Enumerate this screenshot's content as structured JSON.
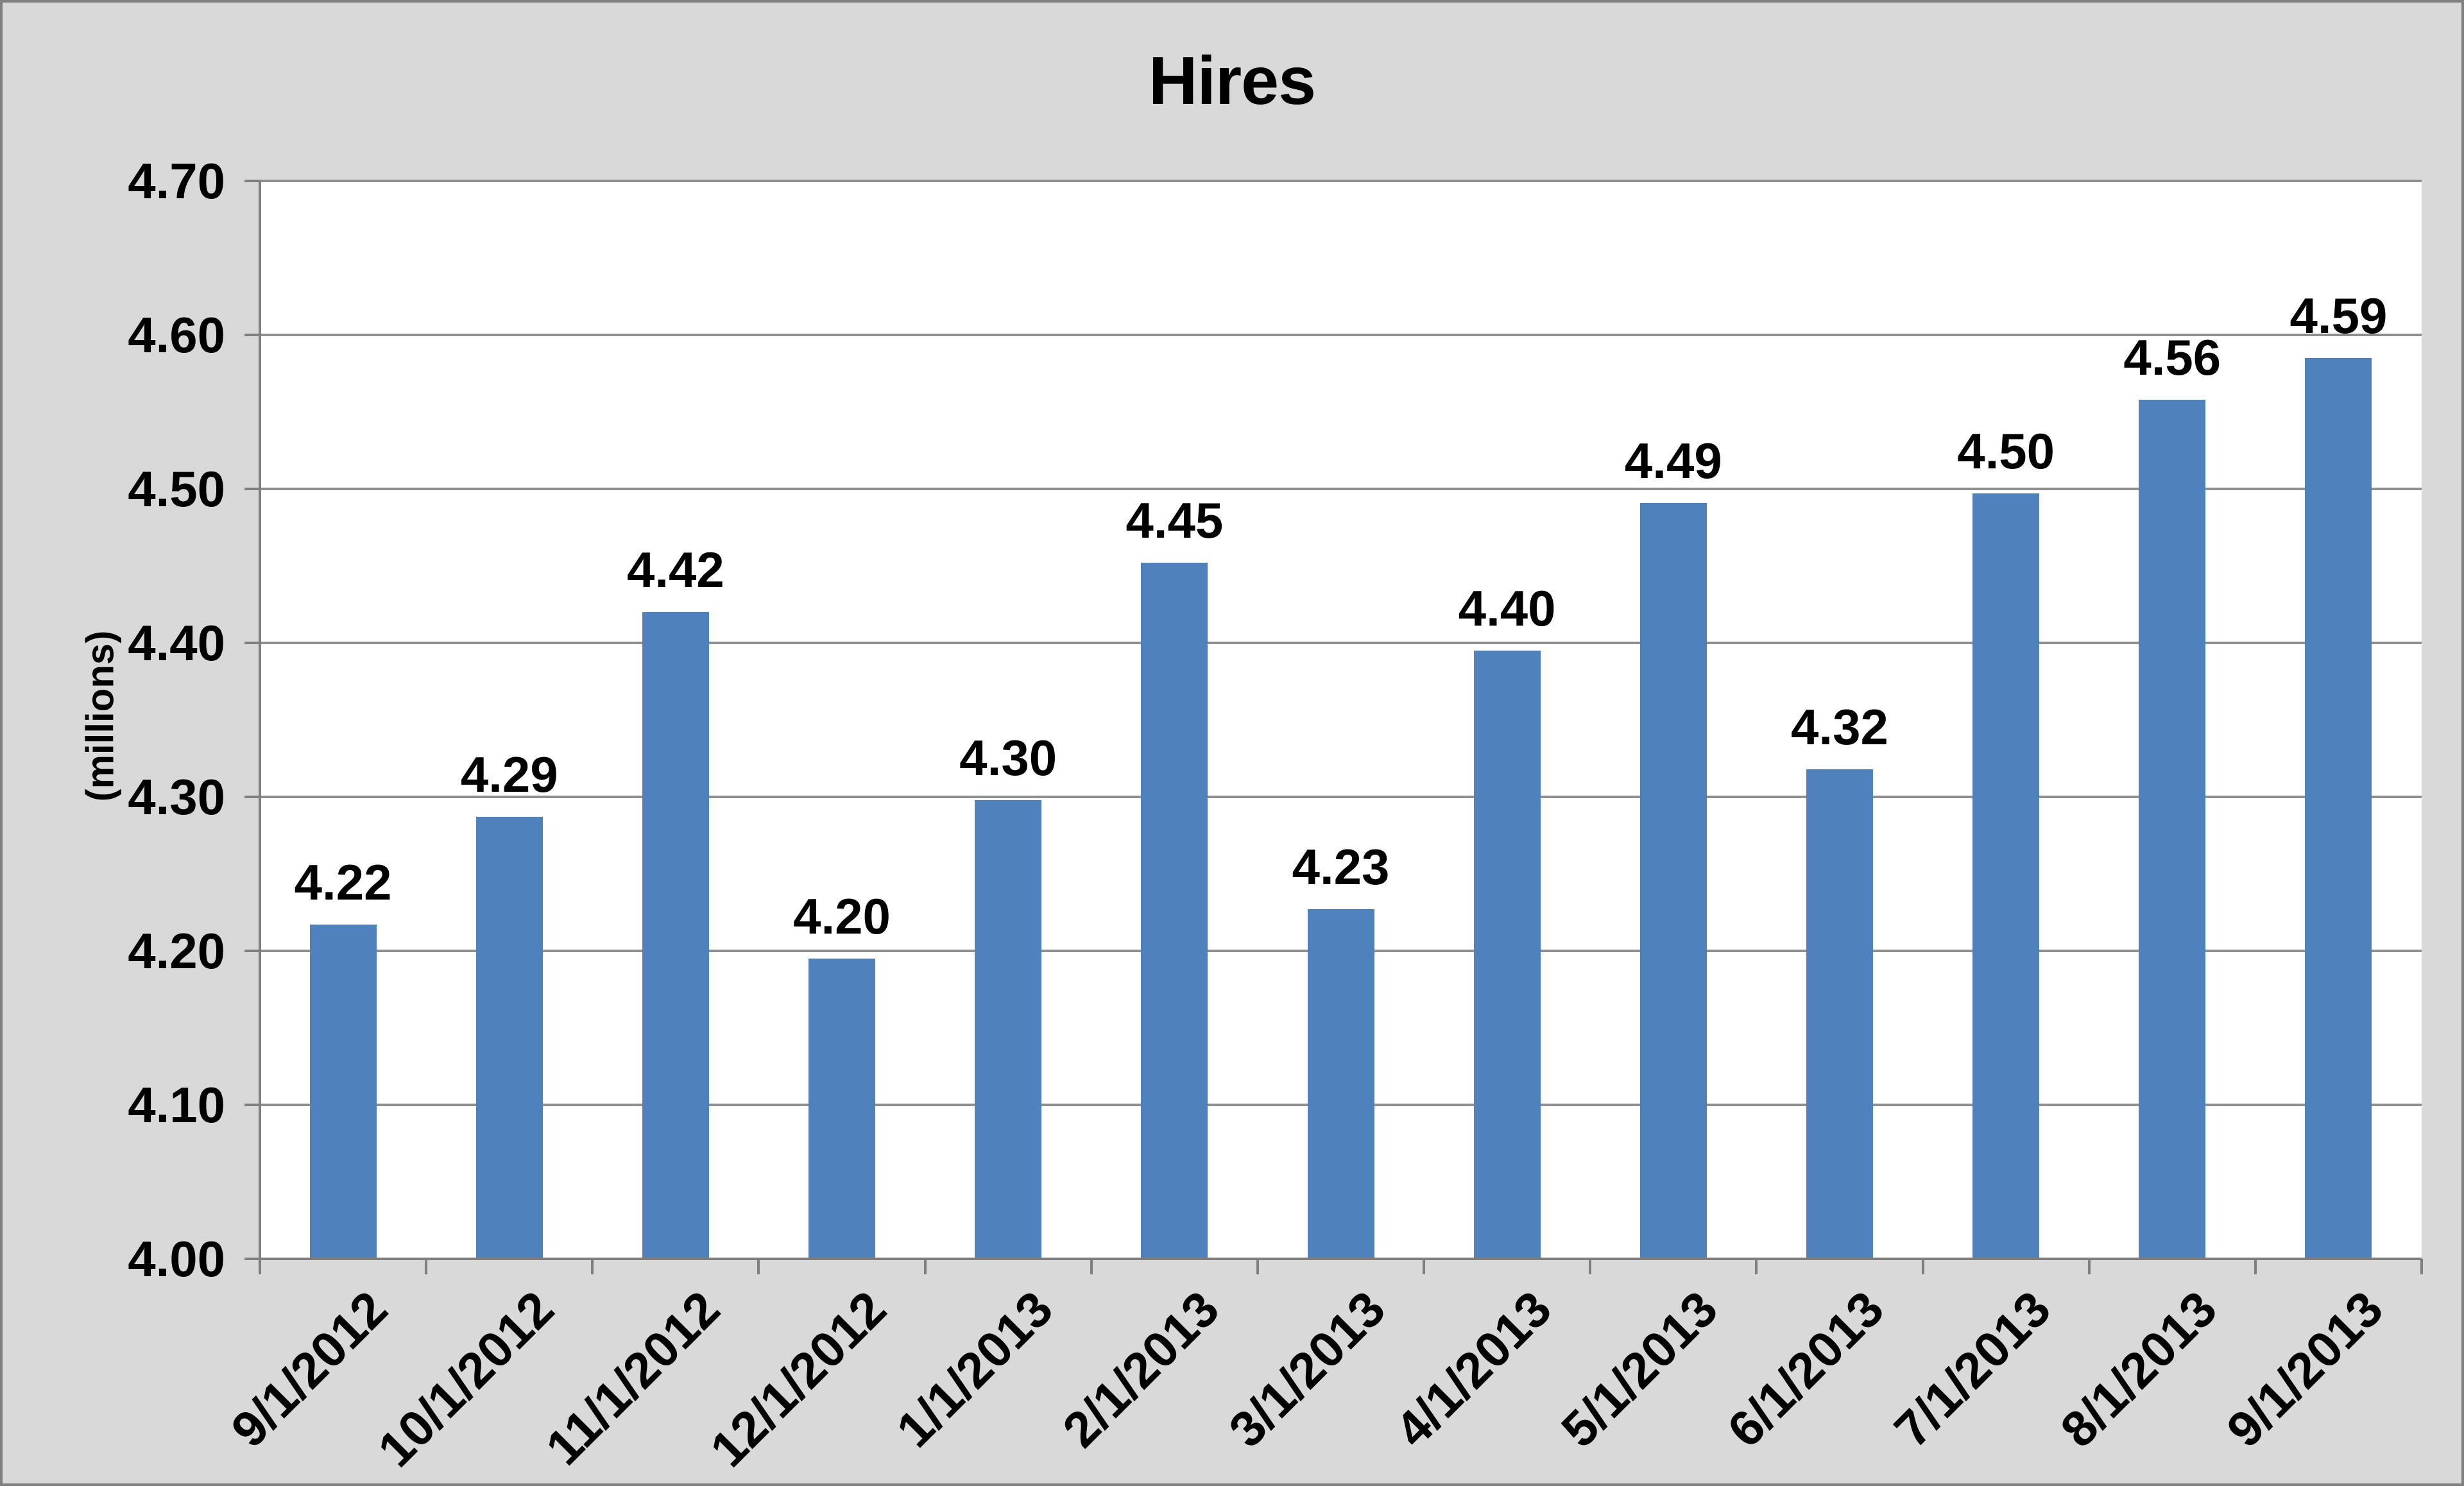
{
  "chart_data": {
    "type": "bar",
    "title": "Hires",
    "ylabel": "(millions)",
    "xlabel": "",
    "categories": [
      "9/1/2012",
      "10/1/2012",
      "11/1/2012",
      "12/1/2012",
      "1/1/2013",
      "2/1/2013",
      "3/1/2013",
      "4/1/2013",
      "5/1/2013",
      "6/1/2013",
      "7/1/2013",
      "8/1/2013",
      "9/1/2013"
    ],
    "values": [
      4.22,
      4.29,
      4.42,
      4.2,
      4.3,
      4.45,
      4.23,
      4.4,
      4.49,
      4.32,
      4.5,
      4.56,
      4.59
    ],
    "data_labels": [
      "4.22",
      "4.29",
      "4.42",
      "4.20",
      "4.30",
      "4.45",
      "4.23",
      "4.40",
      "4.49",
      "4.32",
      "4.50",
      "4.56",
      "4.59"
    ],
    "bar_heights_est": [
      4.217,
      4.287,
      4.42,
      4.195,
      4.298,
      4.452,
      4.227,
      4.395,
      4.491,
      4.318,
      4.497,
      4.558,
      4.585
    ],
    "ylim": [
      4.0,
      4.7
    ],
    "ytick_step": 0.1,
    "ytick_labels": [
      "4.00",
      "4.10",
      "4.20",
      "4.30",
      "4.40",
      "4.50",
      "4.60",
      "4.70"
    ],
    "xtick_rotation_deg": -45,
    "grid": true,
    "legend": "none",
    "series_name": "Hires",
    "colors": {
      "bar": "#4F81BD",
      "plot_bg": "#FFFFFF",
      "chart_bg": "#D9D9D9",
      "gridline": "#8F8F8F",
      "axis": "#7F7F7F",
      "text": "#000000",
      "border": "#808080"
    }
  }
}
